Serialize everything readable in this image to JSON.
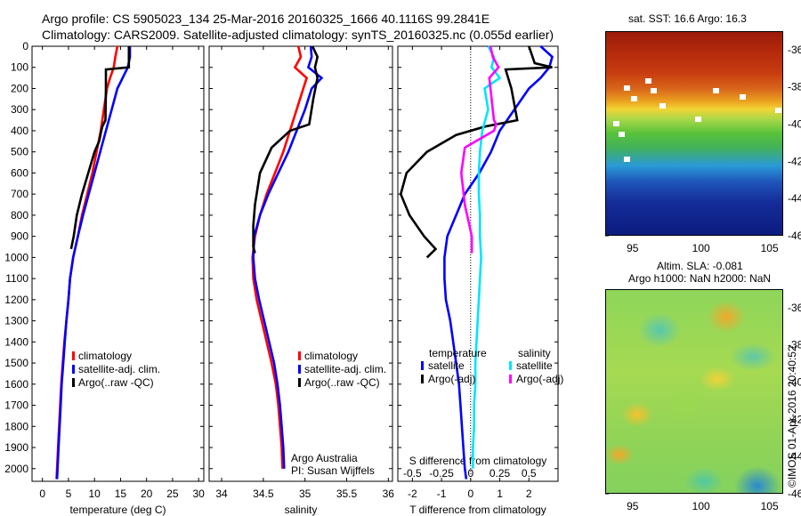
{
  "header": {
    "line1": "Argo profile: CS 5905023_134 25-Mar-2016 20160325_1666 40.1116S 99.2841E",
    "line2": "Climatology: CARS2009. Satellite-adjusted climatology: synTS_20160325.nc (0.055d earlier)"
  },
  "chart_data": [
    {
      "type": "line",
      "id": "temperature",
      "xlabel": "temperature (deg C)",
      "ylabel": "",
      "xlim": [
        -2,
        31
      ],
      "ylim": [
        0,
        2060
      ],
      "y_reversed": true,
      "xticks": [
        "0",
        "5",
        "10",
        "15",
        "20",
        "25",
        "30"
      ],
      "xtick_values": [
        0,
        5,
        10,
        15,
        20,
        25,
        30
      ],
      "yticks": [
        "0",
        "100",
        "200",
        "300",
        "400",
        "500",
        "600",
        "700",
        "800",
        "900",
        "1000",
        "1100",
        "1200",
        "1300",
        "1400",
        "1500",
        "1600",
        "1700",
        "1800",
        "1900",
        "2000"
      ],
      "ytick_values": [
        0,
        100,
        200,
        300,
        400,
        500,
        600,
        700,
        800,
        900,
        1000,
        1100,
        1200,
        1300,
        1400,
        1500,
        1600,
        1700,
        1800,
        1900,
        2000
      ],
      "legend": {
        "placement": "lower-middle",
        "entries": [
          "climatology",
          "satellite-adj. clim.",
          "Argo(..raw -QC)"
        ]
      },
      "series": [
        {
          "name": "climatology",
          "color": "#ff0000",
          "x": [
            14.4,
            14.0,
            13.7,
            13.0,
            12.4,
            11.8,
            11.2,
            10.4,
            9.6,
            8.6,
            7.6,
            6.8,
            5.9,
            5.3,
            5.0,
            4.6,
            4.2,
            3.9,
            3.6,
            3.4,
            3.2,
            3.0,
            2.8,
            2.7
          ],
          "y": [
            0,
            50,
            100,
            150,
            200,
            300,
            400,
            500,
            600,
            700,
            800,
            900,
            1000,
            1100,
            1200,
            1300,
            1400,
            1500,
            1600,
            1700,
            1800,
            1900,
            2000,
            2050
          ]
        },
        {
          "name": "satellite-adj. clim.",
          "color": "#0000ff",
          "x": [
            16.8,
            16.8,
            16.4,
            15.4,
            14.4,
            13.3,
            12.2,
            11.1,
            10.0,
            8.9,
            7.8,
            6.8,
            5.9,
            5.3,
            5.0,
            4.6,
            4.3,
            4.0,
            3.7,
            3.5,
            3.3,
            3.1,
            2.9,
            2.8
          ],
          "y": [
            0,
            50,
            100,
            150,
            200,
            300,
            400,
            500,
            600,
            700,
            800,
            900,
            1000,
            1100,
            1200,
            1300,
            1400,
            1500,
            1600,
            1700,
            1800,
            1900,
            2000,
            2050
          ]
        },
        {
          "name": "Argo(..raw -QC)",
          "color": "#000000",
          "x": [
            16.6,
            16.6,
            16.6,
            12.2,
            12.2,
            12.1,
            11.5,
            11.3,
            10.9,
            10.0,
            8.8,
            7.6,
            6.6,
            6.0,
            5.5
          ],
          "y": [
            0,
            50,
            100,
            110,
            200,
            350,
            380,
            400,
            450,
            500,
            600,
            700,
            800,
            900,
            960
          ]
        }
      ]
    },
    {
      "type": "line",
      "id": "salinity",
      "xlabel": "salinity",
      "ylabel": "",
      "xlim": [
        33.85,
        36.05
      ],
      "ylim": [
        0,
        2060
      ],
      "y_reversed": true,
      "xticks": [
        "34",
        "34.5",
        "35",
        "35.5",
        "36"
      ],
      "xtick_values": [
        34,
        34.5,
        35,
        35.5,
        36
      ],
      "legend": {
        "placement": "lower-middle",
        "entries": [
          "climatology",
          "satellite-adj. clim.",
          "Argo(..raw -QC)"
        ]
      },
      "annotation": {
        "line1": "Argo Australia",
        "line2": "PI: Susan Wijffels"
      },
      "series": [
        {
          "name": "climatology",
          "color": "#ff0000",
          "x": [
            34.92,
            34.95,
            34.88,
            35.02,
            34.98,
            34.9,
            34.82,
            34.74,
            34.64,
            34.54,
            34.46,
            34.4,
            34.37,
            34.38,
            34.42,
            34.48,
            34.54,
            34.6,
            34.65,
            34.68,
            34.7,
            34.72,
            34.73
          ],
          "y": [
            0,
            50,
            100,
            150,
            200,
            300,
            400,
            500,
            600,
            700,
            800,
            900,
            1000,
            1100,
            1200,
            1300,
            1400,
            1500,
            1600,
            1700,
            1800,
            1900,
            2000
          ]
        },
        {
          "name": "satellite-adj. clim.",
          "color": "#0000ff",
          "x": [
            35.07,
            35.08,
            35.04,
            35.2,
            35.08,
            35.0,
            34.9,
            34.8,
            34.68,
            34.56,
            34.46,
            34.39,
            34.38,
            34.4,
            34.45,
            34.51,
            34.57,
            34.63,
            34.67,
            34.7,
            34.72,
            34.74,
            34.75
          ],
          "y": [
            0,
            50,
            100,
            150,
            200,
            300,
            400,
            500,
            600,
            700,
            800,
            900,
            1000,
            1100,
            1200,
            1300,
            1400,
            1500,
            1600,
            1700,
            1800,
            1900,
            2000
          ]
        },
        {
          "name": "Argo(..raw -QC)",
          "color": "#000000",
          "x": [
            35.09,
            35.15,
            35.12,
            35.15,
            35.1,
            35.05,
            34.82,
            34.6,
            34.46,
            34.4,
            34.38,
            34.38,
            34.4
          ],
          "y": [
            0,
            50,
            100,
            150,
            250,
            370,
            400,
            480,
            600,
            750,
            850,
            950,
            980
          ]
        }
      ]
    },
    {
      "type": "line",
      "id": "difference",
      "xlabel": "T difference from climatology",
      "x2label": "S difference from climatology",
      "ylabel": "",
      "xlim": [
        -2.5,
        3.0
      ],
      "x2lim": [
        -0.625,
        0.75
      ],
      "ylim": [
        0,
        2060
      ],
      "y_reversed": true,
      "xticks": [
        "-2",
        "-1",
        "0",
        "1",
        "2"
      ],
      "xtick_values": [
        -2,
        -1,
        0,
        1,
        2
      ],
      "x2ticks": [
        "-0.5",
        "-0.25",
        "0",
        "0.25",
        "0.5"
      ],
      "x2tick_values": [
        -0.5,
        -0.25,
        0,
        0.25,
        0.5
      ],
      "legend": {
        "placement": "lower-middle",
        "temperature_heading": "temperature",
        "salinity_heading": "salinity",
        "entries": [
          "satellite",
          "Argo(-adj)",
          "satellite",
          "Argo(-adj)"
        ]
      },
      "series": [
        {
          "name": "satellite",
          "group": "temperature",
          "color": "#0000ff",
          "x": [
            2.4,
            2.8,
            2.7,
            2.4,
            2.0,
            1.5,
            1.0,
            0.7,
            0.3,
            -0.2,
            -0.5,
            -0.8,
            -0.9,
            -0.9,
            -0.85,
            -0.7,
            -0.6,
            -0.5,
            -0.4,
            -0.35,
            -0.3,
            -0.25,
            -0.2,
            -0.15
          ],
          "y": [
            0,
            50,
            100,
            150,
            200,
            300,
            400,
            500,
            600,
            700,
            800,
            900,
            1000,
            1100,
            1200,
            1300,
            1400,
            1500,
            1600,
            1700,
            1800,
            1900,
            2000,
            2050
          ]
        },
        {
          "name": "Argo(-adj)",
          "group": "temperature",
          "color": "#000000",
          "x": [
            2.0,
            2.2,
            2.8,
            1.2,
            1.4,
            1.6,
            0.5,
            -0.5,
            -1.5,
            -2.2,
            -2.4,
            -2.1,
            -1.6,
            -1.2,
            -1.5
          ],
          "y": [
            0,
            80,
            100,
            110,
            200,
            350,
            380,
            420,
            500,
            600,
            700,
            800,
            900,
            960,
            1000
          ]
        },
        {
          "name": "satellite",
          "group": "salinity",
          "color": "#00e5ff",
          "x": [
            0.15,
            0.2,
            0.18,
            0.25,
            0.12,
            0.15,
            0.1,
            0.08,
            0.07,
            0.07,
            0.08,
            0.08,
            0.09,
            0.08,
            0.07,
            0.06,
            0.05,
            0.04,
            0.04,
            0.03,
            0.03,
            0.02,
            0.02
          ],
          "y": [
            0,
            50,
            100,
            150,
            200,
            300,
            400,
            500,
            600,
            700,
            800,
            900,
            1000,
            1100,
            1200,
            1300,
            1400,
            1500,
            1600,
            1700,
            1800,
            1900,
            2000
          ]
        },
        {
          "name": "Argo(-adj)",
          "group": "salinity",
          "color": "#ff00ff",
          "x": [
            0.17,
            0.19,
            0.24,
            0.16,
            0.18,
            0.2,
            0.22,
            0.2,
            -0.05,
            -0.08,
            -0.05,
            0.01,
            0.01
          ],
          "y": [
            0,
            50,
            100,
            150,
            250,
            350,
            370,
            400,
            480,
            600,
            750,
            900,
            980
          ]
        }
      ]
    },
    {
      "type": "heatmap",
      "id": "sst-map",
      "title": "sat. SST: 16.6 Argo: 16.3",
      "xlim": [
        93,
        106
      ],
      "ylim": [
        -46,
        -35
      ],
      "xticks": [
        "95",
        "100",
        "105"
      ],
      "xtick_values": [
        95,
        100,
        105
      ],
      "yticks": [
        "-36",
        "-38",
        "-40",
        "-42",
        "-44",
        "-46"
      ],
      "ytick_values": [
        -36,
        -38,
        -40,
        -42,
        -44,
        -46
      ]
    },
    {
      "type": "heatmap",
      "id": "sla-map",
      "title": "Altim. SLA: -0.081",
      "subtitle": "Argo h1000: NaN h2000: NaN",
      "xlim": [
        93,
        106
      ],
      "ylim": [
        -46,
        -35
      ],
      "xticks": [
        "95",
        "100",
        "105"
      ],
      "xtick_values": [
        95,
        100,
        105
      ],
      "yticks": [
        "-36",
        "-38",
        "-40",
        "-42",
        "-44",
        "-46"
      ],
      "ytick_values": [
        -36,
        -38,
        -40,
        -42,
        -44,
        -46
      ]
    }
  ],
  "credit": "©IMOS 01-Apr-2016 20:40:52"
}
